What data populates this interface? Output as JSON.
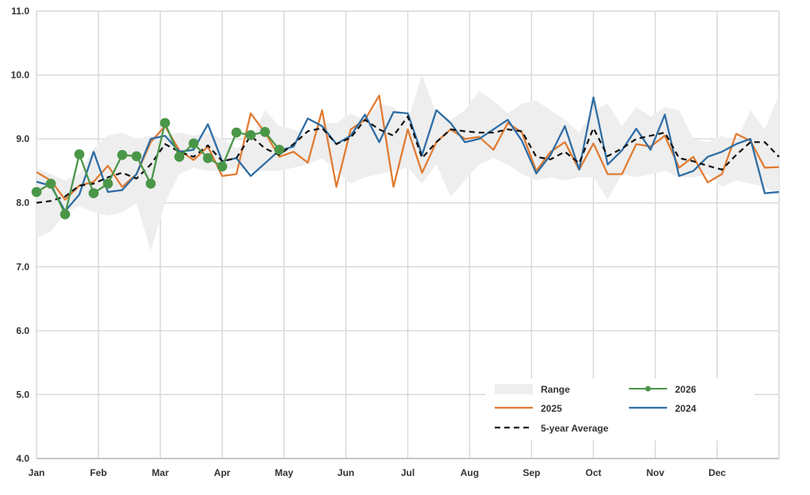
{
  "chart_data": {
    "type": "line",
    "title": "",
    "xlabel": "",
    "ylabel": "",
    "ylim": [
      4.0,
      11.0
    ],
    "y_ticks": [
      "4.0",
      "5.0",
      "6.0",
      "7.0",
      "8.0",
      "9.0",
      "10.0",
      "11.0"
    ],
    "x_tick_labels": [
      "Jan",
      "Feb",
      "Mar",
      "Apr",
      "May",
      "Jun",
      "Jul",
      "Aug",
      "Sep",
      "Oct",
      "Nov",
      "Dec"
    ],
    "x_unit": "week of year (1-52)",
    "grid": "vertical and horizontal",
    "legend_position": "bottom-right",
    "legend": {
      "range": "Range",
      "s2026": "2026",
      "s2025": "2025",
      "s2024": "2024",
      "avg": "5-year Average"
    },
    "range": {
      "name": "Range",
      "color": "#eeeeee",
      "x": [
        1,
        2,
        3,
        4,
        5,
        6,
        7,
        8,
        9,
        10,
        11,
        12,
        13,
        14,
        15,
        16,
        17,
        18,
        19,
        20,
        21,
        22,
        23,
        24,
        25,
        26,
        27,
        28,
        29,
        30,
        31,
        32,
        33,
        34,
        35,
        36,
        37,
        38,
        39,
        40,
        41,
        42,
        43,
        44,
        45,
        46,
        47,
        48,
        49,
        50,
        51,
        52,
        53
      ],
      "low": [
        7.45,
        7.55,
        7.85,
        7.95,
        7.85,
        7.8,
        7.85,
        8.0,
        7.25,
        8.0,
        8.45,
        8.55,
        8.5,
        8.5,
        8.55,
        8.5,
        8.5,
        8.5,
        8.55,
        8.6,
        8.7,
        8.5,
        8.3,
        8.4,
        8.45,
        8.5,
        8.55,
        8.3,
        8.6,
        8.1,
        8.35,
        8.6,
        8.7,
        8.6,
        8.45,
        8.35,
        8.4,
        8.35,
        8.4,
        8.4,
        8.05,
        8.45,
        8.4,
        8.45,
        8.5,
        8.4,
        8.4,
        8.45,
        8.25,
        8.35,
        8.3,
        8.25,
        8.1
      ],
      "high": [
        8.55,
        8.45,
        8.35,
        8.45,
        8.85,
        9.05,
        9.1,
        9.0,
        9.05,
        9.05,
        9.1,
        9.05,
        9.1,
        9.0,
        8.85,
        8.95,
        9.45,
        9.2,
        9.15,
        9.05,
        9.25,
        9.25,
        9.4,
        9.3,
        9.55,
        9.5,
        9.3,
        10.0,
        9.4,
        9.3,
        9.45,
        9.75,
        9.6,
        9.4,
        9.55,
        9.6,
        9.45,
        9.3,
        9.1,
        9.45,
        9.55,
        9.2,
        9.5,
        9.35,
        9.5,
        9.45,
        9.0,
        8.95,
        9.05,
        8.95,
        9.45,
        9.15,
        9.7
      ]
    },
    "series": [
      {
        "name": "2026",
        "color": "#4a9648",
        "x": [
          1,
          2,
          3,
          4,
          5,
          6,
          7,
          8,
          9,
          10,
          11,
          12,
          13,
          14,
          15,
          16,
          17,
          18
        ],
        "values": [
          8.17,
          8.3,
          7.82,
          8.76,
          8.15,
          8.3,
          8.75,
          8.73,
          8.3,
          9.25,
          8.72,
          8.93,
          8.7,
          8.57,
          9.1,
          9.06,
          9.11,
          8.83
        ]
      },
      {
        "name": "2025",
        "color": "#e07b32",
        "x": [
          1,
          2,
          3,
          4,
          5,
          6,
          7,
          8,
          9,
          10,
          11,
          12,
          13,
          14,
          15,
          16,
          17,
          18,
          19,
          20,
          21,
          22,
          23,
          24,
          25,
          26,
          27,
          28,
          29,
          30,
          31,
          32,
          33,
          34,
          35,
          36,
          37,
          38,
          39,
          40,
          41,
          42,
          43,
          44,
          45,
          46,
          47,
          48,
          49,
          50,
          51,
          52,
          53
        ],
        "values": [
          8.48,
          8.35,
          8.05,
          8.27,
          8.33,
          8.58,
          8.25,
          8.45,
          8.95,
          9.2,
          8.82,
          8.67,
          8.88,
          8.42,
          8.45,
          9.4,
          9.1,
          8.72,
          8.8,
          8.63,
          9.45,
          8.25,
          9.15,
          9.3,
          9.68,
          8.25,
          9.15,
          8.47,
          8.95,
          9.15,
          9.0,
          9.03,
          8.83,
          9.25,
          9.1,
          8.5,
          8.8,
          8.95,
          8.52,
          8.93,
          8.45,
          8.45,
          8.92,
          8.88,
          9.05,
          8.55,
          8.72,
          8.32,
          8.45,
          9.08,
          8.97,
          8.55,
          8.56
        ]
      },
      {
        "name": "2024",
        "color": "#2e6da4",
        "x": [
          1,
          2,
          3,
          4,
          5,
          6,
          7,
          8,
          9,
          10,
          11,
          12,
          13,
          14,
          15,
          16,
          17,
          18,
          19,
          20,
          21,
          22,
          23,
          24,
          25,
          26,
          27,
          28,
          29,
          30,
          31,
          32,
          33,
          34,
          35,
          36,
          37,
          38,
          39,
          40,
          41,
          42,
          43,
          44,
          45,
          46,
          47,
          48,
          49,
          50,
          51,
          52,
          53
        ],
        "values": [
          8.33,
          8.27,
          7.87,
          8.13,
          8.8,
          8.17,
          8.2,
          8.45,
          9.0,
          9.05,
          8.8,
          8.83,
          9.23,
          8.65,
          8.7,
          8.42,
          8.62,
          8.82,
          8.88,
          9.32,
          9.2,
          8.92,
          9.05,
          9.38,
          8.95,
          9.42,
          9.4,
          8.75,
          9.45,
          9.25,
          8.95,
          9.0,
          9.15,
          9.3,
          8.97,
          8.46,
          8.75,
          9.2,
          8.52,
          9.65,
          8.6,
          8.82,
          9.16,
          8.83,
          9.38,
          8.42,
          8.5,
          8.72,
          8.8,
          8.92,
          9.0,
          8.15,
          8.17
        ]
      },
      {
        "name": "5-year Average",
        "color": "#111111",
        "dashed": true,
        "x": [
          1,
          2,
          3,
          4,
          5,
          6,
          7,
          8,
          9,
          10,
          11,
          12,
          13,
          14,
          15,
          16,
          17,
          18,
          19,
          20,
          21,
          22,
          23,
          24,
          25,
          26,
          27,
          28,
          29,
          30,
          31,
          32,
          33,
          34,
          35,
          36,
          37,
          38,
          39,
          40,
          41,
          42,
          43,
          44,
          45,
          46,
          47,
          48,
          49,
          50,
          51,
          52,
          53
        ],
        "values": [
          8.0,
          8.03,
          8.1,
          8.27,
          8.3,
          8.4,
          8.47,
          8.38,
          8.6,
          8.92,
          8.8,
          8.72,
          8.9,
          8.65,
          8.7,
          9.05,
          8.85,
          8.75,
          8.92,
          9.12,
          9.17,
          8.92,
          9.02,
          9.3,
          9.15,
          9.05,
          9.35,
          8.7,
          8.95,
          9.15,
          9.12,
          9.1,
          9.1,
          9.15,
          9.12,
          8.72,
          8.68,
          8.8,
          8.62,
          9.17,
          8.73,
          8.85,
          9.0,
          9.05,
          9.1,
          8.7,
          8.65,
          8.58,
          8.52,
          8.75,
          8.95,
          8.95,
          8.72
        ]
      }
    ]
  }
}
